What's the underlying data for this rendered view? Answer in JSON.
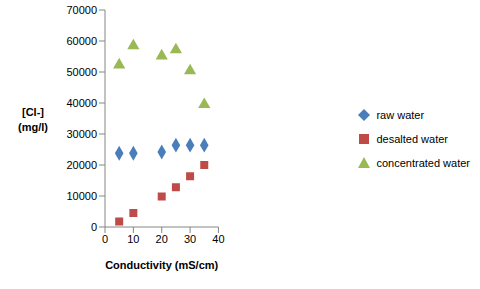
{
  "chart_data": {
    "type": "scatter",
    "x_label": "Conductivity (mS/cm)",
    "y_label": "[Cl-]\n(mg/l)",
    "xlim": [
      0,
      40
    ],
    "xticks": [
      0,
      10,
      20,
      30,
      40
    ],
    "ylim": [
      0,
      70000
    ],
    "yticks": [
      0,
      10000,
      20000,
      30000,
      40000,
      50000,
      60000,
      70000
    ],
    "grid": false,
    "legend": "right",
    "x": [
      5,
      10,
      20,
      25,
      30,
      35
    ],
    "series": [
      {
        "name": "raw water",
        "color": "#4a7ebb",
        "marker": "diamond",
        "values": [
          23800,
          23800,
          24200,
          26400,
          26400,
          26400
        ]
      },
      {
        "name": "desalted water",
        "color": "#be4b48",
        "marker": "square",
        "values": [
          1800,
          4500,
          9800,
          12800,
          16400,
          20000
        ]
      },
      {
        "name": "concentrated water",
        "color": "#98b954",
        "marker": "triangle",
        "values": [
          52300,
          58500,
          55200,
          57200,
          50400,
          39500
        ]
      }
    ]
  }
}
